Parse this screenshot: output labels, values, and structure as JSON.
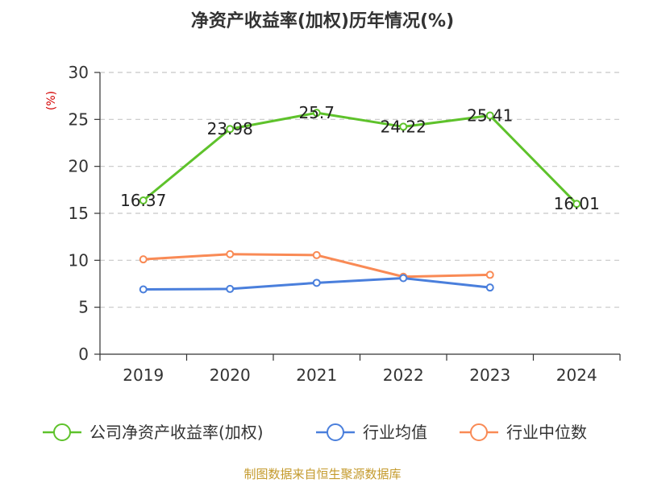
{
  "chart_data": {
    "type": "line",
    "title": "净资产收益率(加权)历年情况(%)",
    "ylabel": "(%)",
    "xlabel": "",
    "categories": [
      "2019",
      "2020",
      "2021",
      "2022",
      "2023",
      "2024"
    ],
    "ylim": [
      0,
      30
    ],
    "yticks": [
      0,
      5,
      10,
      15,
      20,
      25,
      30
    ],
    "grid": true,
    "legend_position": "bottom",
    "series": [
      {
        "name": "公司净资产收益率(加权)",
        "color": "#5ec22b",
        "values": [
          16.37,
          23.98,
          25.7,
          24.22,
          25.41,
          16.01
        ],
        "labels": [
          "16.37",
          "23.98",
          "25.7",
          "24.22",
          "25.41",
          "16.01"
        ]
      },
      {
        "name": "行业均值",
        "color": "#4a7fdc",
        "values": [
          6.9,
          6.95,
          7.6,
          8.1,
          7.1,
          null
        ]
      },
      {
        "name": "行业中位数",
        "color": "#f98a55",
        "values": [
          10.1,
          10.65,
          10.55,
          8.25,
          8.45,
          null
        ]
      }
    ],
    "source": "制图数据来自恒生聚源数据库"
  }
}
